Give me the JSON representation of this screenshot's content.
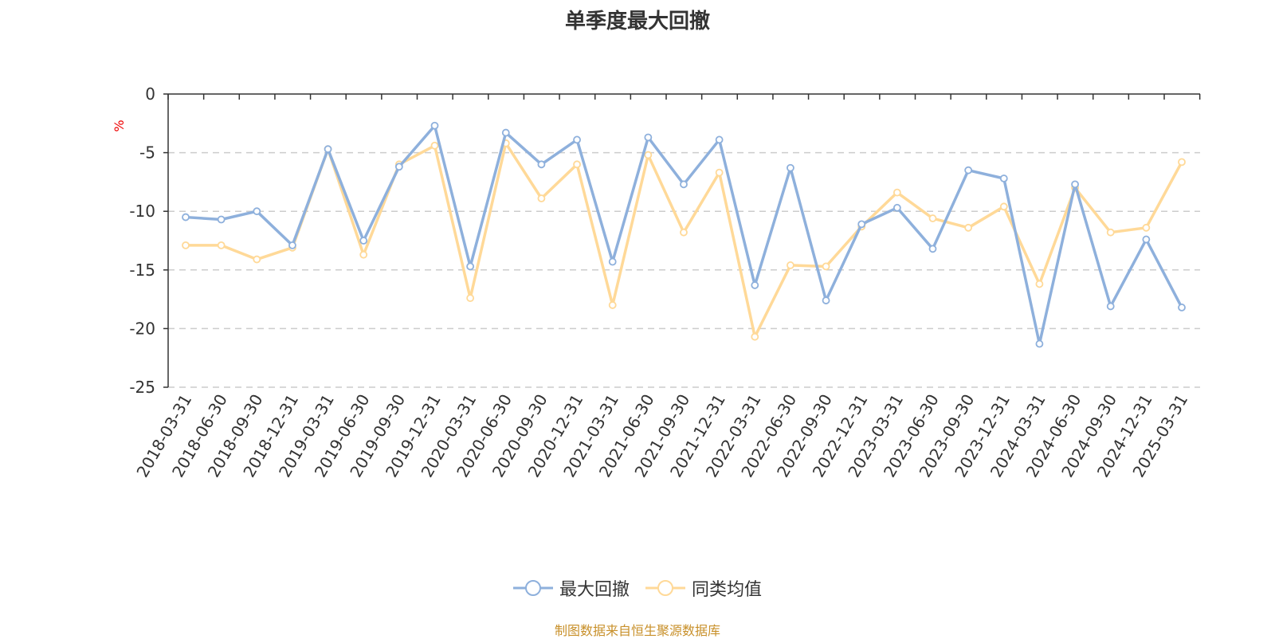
{
  "chart_data": {
    "type": "line",
    "title": "单季度最大回撤",
    "ylabel": "%",
    "ylim": [
      -25,
      0
    ],
    "yticks": [
      0,
      -5,
      -10,
      -15,
      -20,
      -25
    ],
    "grid": true,
    "legend_position": "bottom",
    "categories": [
      "2018-03-31",
      "2018-06-30",
      "2018-09-30",
      "2018-12-31",
      "2019-03-31",
      "2019-06-30",
      "2019-09-30",
      "2019-12-31",
      "2020-03-31",
      "2020-06-30",
      "2020-09-30",
      "2020-12-31",
      "2021-03-31",
      "2021-06-30",
      "2021-09-30",
      "2021-12-31",
      "2022-03-31",
      "2022-06-30",
      "2022-09-30",
      "2022-12-31",
      "2023-03-31",
      "2023-06-30",
      "2023-09-30",
      "2023-12-31",
      "2024-03-31",
      "2024-06-30",
      "2024-09-30",
      "2024-12-31",
      "2025-03-31"
    ],
    "series": [
      {
        "name": "最大回撤",
        "color": "#8eb0dc",
        "values": [
          -10.5,
          -10.7,
          -10.0,
          -12.9,
          -4.7,
          -12.5,
          -6.2,
          -2.7,
          -14.7,
          -3.3,
          -6.0,
          -3.9,
          -14.3,
          -3.7,
          -7.7,
          -3.9,
          -16.3,
          -6.3,
          -17.6,
          -11.1,
          -9.7,
          -13.2,
          -6.5,
          -7.2,
          -21.3,
          -7.7,
          -18.1,
          -12.4,
          -18.2
        ]
      },
      {
        "name": "同类均值",
        "color": "#ffd998",
        "values": [
          -12.9,
          -12.9,
          -14.1,
          -13.1,
          -4.7,
          -13.7,
          -6.0,
          -4.4,
          -17.4,
          -4.2,
          -8.9,
          -6.0,
          -18.0,
          -5.2,
          -11.8,
          -6.7,
          -20.7,
          -14.6,
          -14.7,
          -11.3,
          -8.4,
          -10.6,
          -11.4,
          -9.6,
          -16.2,
          -8.0,
          -11.8,
          -11.4,
          -5.8
        ]
      }
    ]
  },
  "source": "制图数据来自恒生聚源数据库"
}
